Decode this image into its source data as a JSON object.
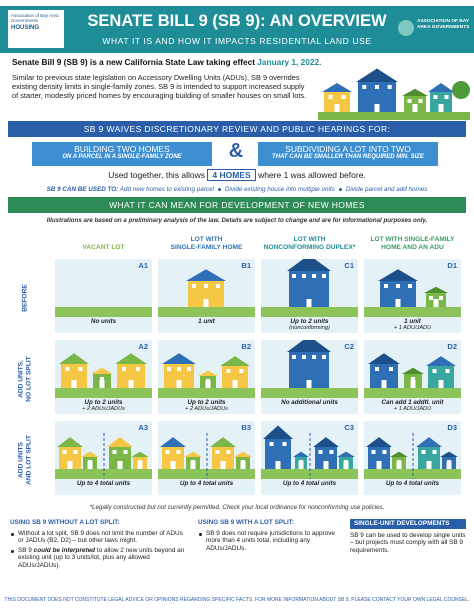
{
  "header": {
    "logo_left": "Association of Bay Area Governments",
    "logo_left_sub": "HOUSING",
    "title": "SENATE BILL 9 (SB 9): AN OVERVIEW",
    "subtitle": "WHAT IT IS AND HOW IT IMPACTS RESIDENTIAL LAND USE",
    "logo_right": "ASSOCIATION OF BAY AREA GOVERNMENTS"
  },
  "intro": {
    "lead": "Senate Bill 9 (SB 9) is a new California State Law taking effect",
    "date": "January 1, 2022.",
    "body": "Similar to previous state legislation on Accessory Dwelling Units (ADUs), SB 9 overrides existing density limits in single-family zones. SB 9 is intended to support increased supply of starter, modestly priced homes by encouraging building of smaller houses on small lots."
  },
  "waiver": {
    "heading": "SB 9 WAIVES DISCRETIONARY REVIEW AND PUBLIC HEARINGS FOR:",
    "connector": "&",
    "items": [
      {
        "title": "BUILDING TWO HOMES",
        "subtitle": "ON A PARCEL IN A SINGLE-FAMILY ZONE"
      },
      {
        "title": "SUBDIVIDING A LOT INTO TWO",
        "subtitle": "THAT CAN BE SMALLER THAN REQUIRED MIN. SIZE"
      }
    ]
  },
  "summary": {
    "before": "Used together, this allows",
    "highlight": "4 HOMES",
    "after": "where 1 was allowed before."
  },
  "uses": {
    "label": "SB 9 CAN BE USED TO:",
    "items": [
      "Add new homes to existing parcel",
      "Divide existing house into multiple units",
      "Divide parcel and add homes"
    ]
  },
  "development": {
    "heading": "WHAT IT CAN MEAN FOR DEVELOPMENT OF NEW HOMES",
    "note": "Illustrations are based on a preliminary analysis of the law. Details are subject to change and are for informational purposes only.",
    "columns": [
      [
        "VACANT LOT"
      ],
      [
        "LOT WITH",
        "SINGLE-FAMILY HOME"
      ],
      [
        "LOT WITH",
        "NONCONFORMING DUPLEX*"
      ],
      [
        "LOT WITH SINGLE-FAMILY",
        "HOME AND AN ADU"
      ]
    ],
    "rows": [
      {
        "label": [
          "BEFORE"
        ],
        "cells": [
          {
            "id": "A1",
            "lines": [
              "No units"
            ]
          },
          {
            "id": "B1",
            "lines": [
              "1 unit"
            ]
          },
          {
            "id": "C1",
            "lines": [
              "Up to 2 units",
              "(nonconforming)"
            ]
          },
          {
            "id": "D1",
            "lines": [
              "1 unit",
              "+ 1 ADU/JADU"
            ]
          }
        ]
      },
      {
        "label": [
          "ADD UNITS,",
          "NO LOT SPLIT"
        ],
        "cells": [
          {
            "id": "A2",
            "lines": [
              "Up to 2 units",
              "+ 2 ADUs/JADUs"
            ]
          },
          {
            "id": "B2",
            "lines": [
              "Up to 2 units",
              "+ 2 ADUs/JADUs"
            ]
          },
          {
            "id": "C2",
            "lines": [
              "No additional units"
            ]
          },
          {
            "id": "D2",
            "lines": [
              "Can add 1 addtl. unit",
              "+ 1 ADU/JADU"
            ]
          }
        ]
      },
      {
        "label": [
          "ADD UNITS",
          "AND LOT SPLIT"
        ],
        "cells": [
          {
            "id": "A3",
            "lines": [
              "Up to 4 total units"
            ]
          },
          {
            "id": "B3",
            "lines": [
              "Up to 4 total units"
            ]
          },
          {
            "id": "C3",
            "lines": [
              "Up to 4 total units"
            ]
          },
          {
            "id": "D3",
            "lines": [
              "Up to 4 total units"
            ]
          }
        ]
      }
    ],
    "footnote": "*Legally constructed but not currently permitted. Check your local ordinance for nonconforming use policies."
  },
  "notes": [
    {
      "heading": "USING SB 9 WITHOUT A LOT SPLIT:",
      "bullets": [
        [
          "Without a lot split, SB 9 does not limit the number of ADUs or JADUs (B2, D2) – but other laws might."
        ],
        [
          "SB 9 ",
          "could be interpreted",
          " to allow 2 new units beyond an existing unit (up to 3 units/lot, plus any allowed ADUs/JADUs)."
        ]
      ]
    },
    {
      "heading": "USING SB 9 WITH A LOT SPLIT:",
      "bullets": [
        [
          "SB 9 does not require jurisdictions to approve more than 4 units total, including any ADUs/JADUs."
        ]
      ]
    },
    {
      "heading": "SINGLE-UNIT DEVELOPMENTS",
      "bullets": [
        [
          "SB 9 can be used to develop single units – but projects must comply with all SB 9 requirements."
        ]
      ]
    }
  ],
  "disclaimer": "THIS DOCUMENT DOES NOT CONSTITUTE LEGAL ADVICE OR OPINIONS REGARDING SPECIFIC FACTS. FOR MORE INFORMATION ABOUT SB 9, PLEASE CONTACT YOUR OWN LEGAL COUNSEL."
}
